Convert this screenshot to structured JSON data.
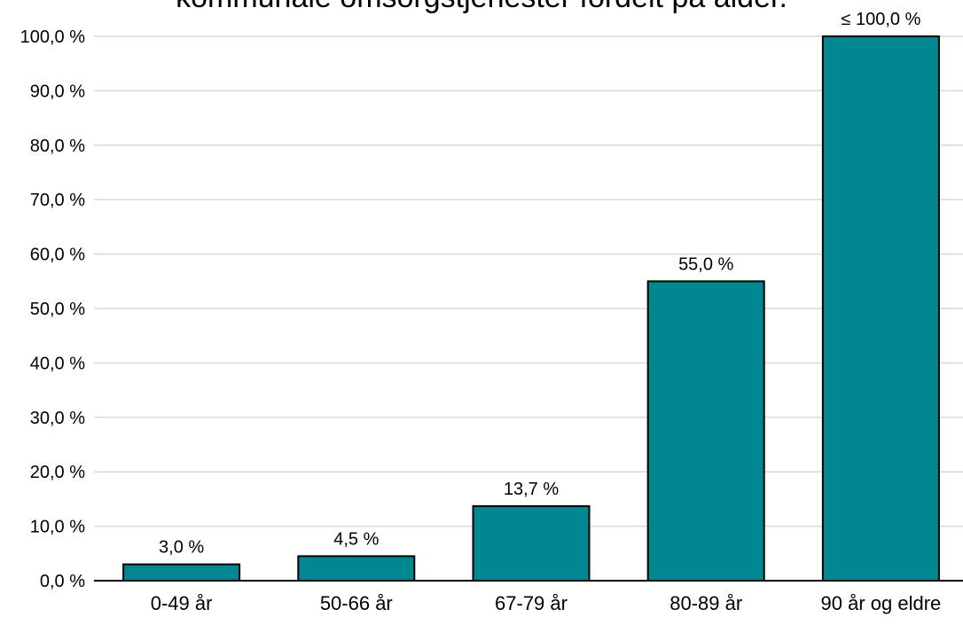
{
  "chart_data": {
    "type": "bar",
    "title": "kommunale omsorgstjenester fordelt på alder.",
    "categories": [
      "0-49 år",
      "50-66 år",
      "67-79 år",
      "80-89 år",
      "90 år og eldre"
    ],
    "values": [
      3.0,
      4.5,
      13.7,
      55.0,
      100.0
    ],
    "value_labels": [
      "3,0 %",
      "4,5 %",
      "13,7 %",
      "55,0 %",
      "≤ 100,0 %"
    ],
    "ylim": [
      0,
      100
    ],
    "y_ticks": [
      0,
      10,
      20,
      30,
      40,
      50,
      60,
      70,
      80,
      90,
      100
    ],
    "y_tick_labels": [
      "0,0 %",
      "10,0 %",
      "20,0 %",
      "30,0 %",
      "40,0 %",
      "50,0 %",
      "60,0 %",
      "70,0 %",
      "80,0 %",
      "90,0 %",
      "100,0 %"
    ],
    "xlabel": "",
    "ylabel": "",
    "grid": true,
    "colors": {
      "bar": "#00878F",
      "bar_stroke": "#000000",
      "grid": "#d9d9d9",
      "axis": "#000000"
    }
  }
}
